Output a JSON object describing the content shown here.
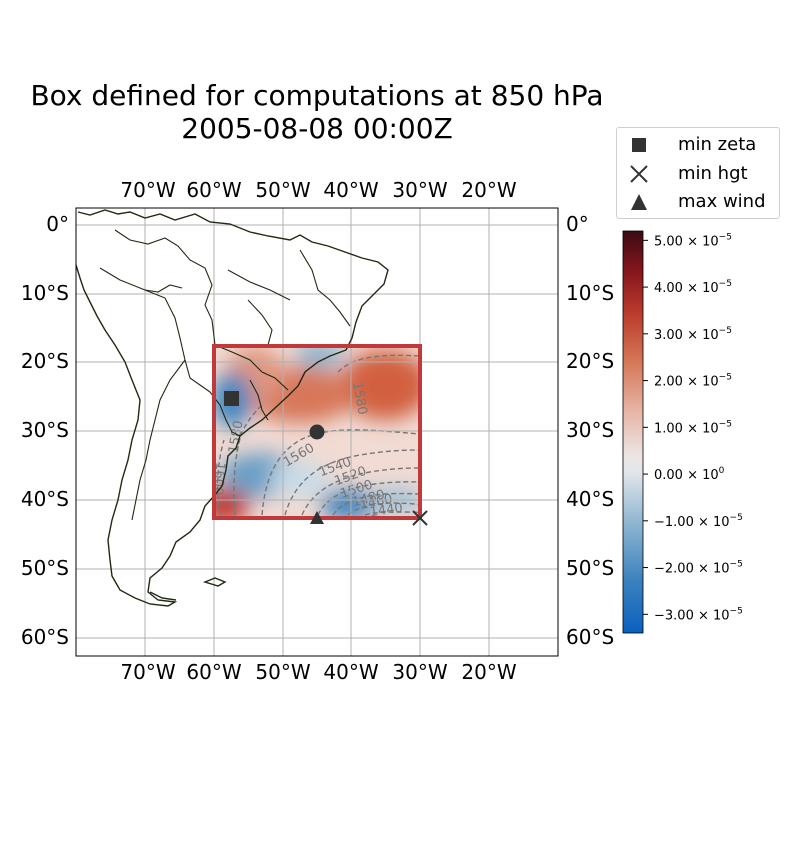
{
  "title_line1": "Box defined for computations at 850 hPa",
  "title_line2": "2005-08-08 00:00Z",
  "legend": [
    {
      "icon": "square-marker-icon",
      "label": "min zeta"
    },
    {
      "icon": "x-marker-icon",
      "label": "min hgt"
    },
    {
      "icon": "triangle-marker-icon",
      "label": "max wind"
    }
  ],
  "lon_ticks": [
    "70°W",
    "60°W",
    "50°W",
    "40°W",
    "30°W",
    "20°W"
  ],
  "lat_ticks": [
    "0°",
    "10°S",
    "20°S",
    "30°S",
    "40°S",
    "50°S",
    "60°S"
  ],
  "map_extent": {
    "lon": [
      -80,
      -10
    ],
    "lat": [
      2,
      -63
    ]
  },
  "box": {
    "lon": [
      -60,
      -30
    ],
    "lat": [
      -18,
      -42.5
    ],
    "color": "#c0393b"
  },
  "markers": {
    "min_zeta": {
      "lon": -57.5,
      "lat": -25
    },
    "min_hgt": {
      "lon": -30,
      "lat": -42.5
    },
    "max_wind": {
      "lon": -45,
      "lat": -42.5
    },
    "center": {
      "lon": -45,
      "lat": -30
    }
  },
  "contour_labels": [
    "1580",
    "1580",
    "1600",
    "1560",
    "1540",
    "1520",
    "1500",
    "1480",
    "1460",
    "1440"
  ],
  "colorbar": {
    "ticks": [
      {
        "value": 5e-05,
        "mant": "5.00",
        "exp": "−5"
      },
      {
        "value": 4e-05,
        "mant": "4.00",
        "exp": "−5"
      },
      {
        "value": 3e-05,
        "mant": "3.00",
        "exp": "−5"
      },
      {
        "value": 2e-05,
        "mant": "2.00",
        "exp": "−5"
      },
      {
        "value": 1e-05,
        "mant": "1.00",
        "exp": "−5"
      },
      {
        "value": 0,
        "mant": "0.00",
        "exp": "0"
      },
      {
        "value": -1e-05,
        "mant": "−1.00",
        "exp": "−5"
      },
      {
        "value": -2e-05,
        "mant": "−2.00",
        "exp": "−5"
      },
      {
        "value": -3e-05,
        "mant": "−3.00",
        "exp": "−5"
      }
    ],
    "range": [
      -3.4e-05,
      5.2e-05
    ]
  }
}
